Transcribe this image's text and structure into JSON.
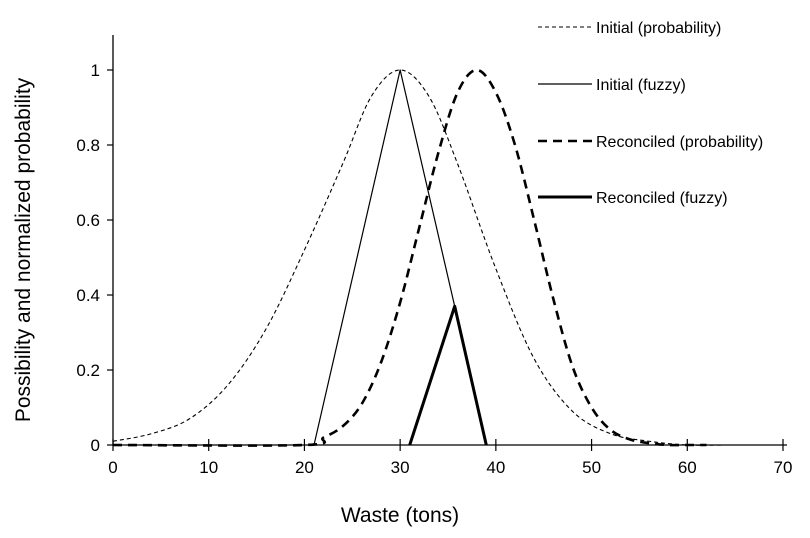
{
  "chart_data": {
    "type": "line",
    "xlabel": "Waste (tons)",
    "ylabel": "Possibility and normalized probability",
    "xlim": [
      0,
      70
    ],
    "ylim": [
      0,
      1.1
    ],
    "xticks": [
      0,
      10,
      20,
      30,
      40,
      50,
      60,
      70
    ],
    "yticks": [
      0,
      0.2,
      0.4,
      0.6,
      0.8,
      1
    ],
    "ytick_labels": [
      "0",
      "0.2",
      "0.4",
      "0.6",
      "0.8",
      "1"
    ],
    "grid": false,
    "legend_position": "top-right",
    "series": [
      {
        "name": "Initial (probability)",
        "style": "thin-dashed",
        "color": "#000000",
        "x": [
          0,
          4,
          8,
          12,
          16,
          20,
          24,
          27,
          30,
          33,
          36,
          40,
          44,
          48,
          52,
          56,
          60,
          64,
          67
        ],
        "y": [
          0.01,
          0.03,
          0.07,
          0.16,
          0.31,
          0.52,
          0.75,
          0.93,
          1.0,
          0.93,
          0.75,
          0.47,
          0.23,
          0.09,
          0.03,
          0.01,
          0.0,
          0.0,
          0.0
        ]
      },
      {
        "name": "Initial (fuzzy)",
        "style": "thin-solid",
        "color": "#000000",
        "x": [
          21,
          30,
          35.7
        ],
        "y": [
          0,
          1,
          0.37
        ]
      },
      {
        "name": "Reconciled (probability)",
        "style": "thick-dashed",
        "color": "#000000",
        "x": [
          0,
          20,
          22,
          24,
          26,
          28,
          30,
          32,
          34,
          36,
          38,
          40,
          42,
          44,
          46,
          48,
          50,
          52,
          54,
          56,
          58,
          60,
          62
        ],
        "y": [
          0.0,
          0.0,
          0.02,
          0.05,
          0.11,
          0.22,
          0.38,
          0.58,
          0.78,
          0.94,
          1.0,
          0.94,
          0.8,
          0.6,
          0.39,
          0.21,
          0.1,
          0.04,
          0.015,
          0.005,
          0.0,
          0.0,
          0.0
        ]
      },
      {
        "name": "Reconciled (fuzzy)",
        "style": "thick-solid",
        "color": "#000000",
        "x": [
          31,
          35.7,
          39
        ],
        "y": [
          0,
          0.37,
          0
        ]
      }
    ]
  }
}
